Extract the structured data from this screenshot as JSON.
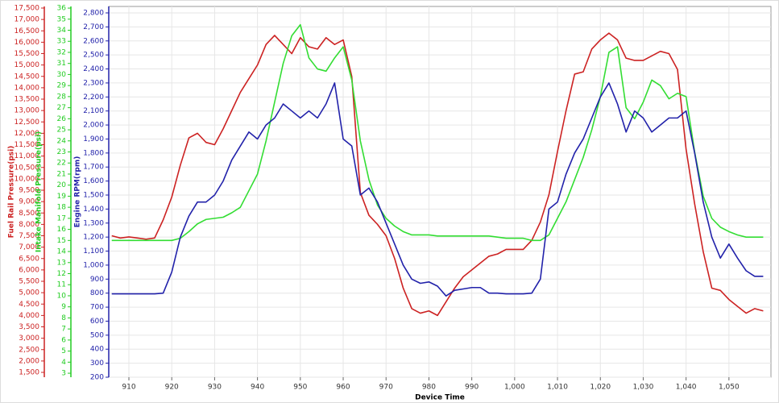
{
  "chart_data": {
    "type": "line",
    "xlabel": "Device Time",
    "xlim": [
      905.3,
      1059.8
    ],
    "xticks": [
      910,
      920,
      930,
      940,
      950,
      960,
      970,
      980,
      990,
      {
        "value": 1000,
        "label": "1,000"
      },
      {
        "value": 1010,
        "label": "1,010"
      },
      {
        "value": 1020,
        "label": "1,020"
      },
      {
        "value": 1030,
        "label": "1,030"
      },
      {
        "value": 1040,
        "label": "1,040"
      },
      {
        "value": 1050,
        "label": "1,050"
      }
    ],
    "grid": true,
    "y_axes": [
      {
        "label": "Fuel Rail Pressure(psi)",
        "color": "#cc2222",
        "ylim": [
          1288,
          17571
        ],
        "yticks": [
          {
            "value": 1500,
            "label": "1,500"
          },
          {
            "value": 2000,
            "label": "2,000"
          },
          {
            "value": 2500,
            "label": "2,500"
          },
          {
            "value": 3000,
            "label": "3,000"
          },
          {
            "value": 3500,
            "label": "3,500"
          },
          {
            "value": 4000,
            "label": "4,000"
          },
          {
            "value": 4500,
            "label": "4,500"
          },
          {
            "value": 5000,
            "label": "5,000"
          },
          {
            "value": 5500,
            "label": "5,500"
          },
          {
            "value": 6000,
            "label": "6,000"
          },
          {
            "value": 6500,
            "label": "6,500"
          },
          {
            "value": 7000,
            "label": "7,000"
          },
          {
            "value": 7500,
            "label": "7,500"
          },
          {
            "value": 8000,
            "label": "8,000"
          },
          {
            "value": 8500,
            "label": "8,500"
          },
          {
            "value": 9000,
            "label": "9,000"
          },
          {
            "value": 9500,
            "label": "9,500"
          },
          {
            "value": 10000,
            "label": "10,000"
          },
          {
            "value": 10500,
            "label": "10,500"
          },
          {
            "value": 11000,
            "label": "11,000"
          },
          {
            "value": 11500,
            "label": "11,500"
          },
          {
            "value": 12000,
            "label": "12,000"
          },
          {
            "value": 12500,
            "label": "12,500"
          },
          {
            "value": 13000,
            "label": "13,000"
          },
          {
            "value": 13500,
            "label": "13,500"
          },
          {
            "value": 14000,
            "label": "14,000"
          },
          {
            "value": 14500,
            "label": "14,500"
          },
          {
            "value": 15000,
            "label": "15,000"
          },
          {
            "value": 15500,
            "label": "15,500"
          },
          {
            "value": 16000,
            "label": "16,000"
          },
          {
            "value": 16500,
            "label": "16,500"
          },
          {
            "value": 17000,
            "label": "17,000"
          },
          {
            "value": 17500,
            "label": "17,500"
          }
        ]
      },
      {
        "label": "Intake Manifold Pressure(psi)",
        "color": "#22cc22",
        "ylim": [
          2.64,
          36.15
        ],
        "yticks": [
          3,
          4,
          5,
          6,
          7,
          8,
          9,
          10,
          11,
          12,
          13,
          14,
          15,
          16,
          17,
          18,
          19,
          20,
          21,
          22,
          23,
          24,
          25,
          26,
          27,
          28,
          29,
          30,
          31,
          32,
          33,
          34,
          35,
          36
        ]
      },
      {
        "label": "Engine RPM(rpm)",
        "color": "#2222aa",
        "ylim": [
          200,
          2846
        ],
        "yticks": [
          200,
          300,
          400,
          500,
          600,
          700,
          800,
          900,
          {
            "value": 1000,
            "label": "1,000"
          },
          {
            "value": 1100,
            "label": "1,100"
          },
          {
            "value": 1200,
            "label": "1,200"
          },
          {
            "value": 1300,
            "label": "1,300"
          },
          {
            "value": 1400,
            "label": "1,400"
          },
          {
            "value": 1500,
            "label": "1,500"
          },
          {
            "value": 1600,
            "label": "1,600"
          },
          {
            "value": 1700,
            "label": "1,700"
          },
          {
            "value": 1800,
            "label": "1,800"
          },
          {
            "value": 1900,
            "label": "1,900"
          },
          {
            "value": 2000,
            "label": "2,000"
          },
          {
            "value": 2100,
            "label": "2,100"
          },
          {
            "value": 2200,
            "label": "2,200"
          },
          {
            "value": 2300,
            "label": "2,300"
          },
          {
            "value": 2400,
            "label": "2,400"
          },
          {
            "value": 2500,
            "label": "2,500"
          },
          {
            "value": 2600,
            "label": "2,600"
          },
          {
            "value": 2700,
            "label": "2,700"
          },
          {
            "value": 2800,
            "label": "2,800"
          }
        ]
      }
    ],
    "x": [
      906,
      908,
      910,
      912,
      914,
      916,
      918,
      920,
      922,
      924,
      926,
      928,
      930,
      932,
      934,
      936,
      938,
      940,
      942,
      944,
      946,
      948,
      950,
      952,
      954,
      956,
      958,
      960,
      962,
      964,
      966,
      968,
      970,
      972,
      974,
      976,
      978,
      980,
      982,
      984,
      986,
      988,
      990,
      992,
      994,
      996,
      998,
      1000,
      1002,
      1004,
      1006,
      1008,
      1010,
      1012,
      1014,
      1016,
      1018,
      1020,
      1022,
      1024,
      1026,
      1028,
      1030,
      1032,
      1034,
      1036,
      1038,
      1040,
      1042,
      1044,
      1046,
      1048,
      1050,
      1052,
      1054,
      1056,
      1058
    ],
    "series": [
      {
        "axis": 0,
        "color": "#cc2222",
        "values": [
          7500,
          7400,
          7450,
          7400,
          7350,
          7400,
          8200,
          9200,
          10600,
          11800,
          12000,
          11600,
          11500,
          12200,
          13000,
          13800,
          14400,
          15000,
          15900,
          16300,
          15900,
          15500,
          16200,
          15800,
          15700,
          16200,
          15900,
          16100,
          14500,
          9400,
          8400,
          8000,
          7500,
          6500,
          5200,
          4300,
          4100,
          4200,
          4000,
          4600,
          5200,
          5700,
          6000,
          6300,
          6600,
          6700,
          6900,
          6900,
          6900,
          7300,
          8100,
          9300,
          11200,
          13000,
          14600,
          14700,
          15700,
          16100,
          16400,
          16100,
          15300,
          15200,
          15200,
          15400,
          15600,
          15500,
          14800,
          11300,
          8900,
          6800,
          5200,
          5100,
          4700,
          4400,
          4100,
          4300,
          4200
        ]
      },
      {
        "axis": 1,
        "color": "#33dd33",
        "values": [
          15,
          15,
          15,
          15,
          15,
          15,
          15,
          15,
          15.2,
          15.8,
          16.5,
          16.9,
          17,
          17.1,
          17.5,
          18,
          19.5,
          21,
          24,
          27.5,
          31,
          33.5,
          34.5,
          31.5,
          30.5,
          30.3,
          31.5,
          32.5,
          29.5,
          24,
          20.5,
          18.2,
          17,
          16.3,
          15.8,
          15.5,
          15.5,
          15.5,
          15.4,
          15.4,
          15.4,
          15.4,
          15.4,
          15.4,
          15.4,
          15.3,
          15.2,
          15.2,
          15.2,
          15,
          15,
          15.5,
          17,
          18.5,
          20.5,
          22.5,
          25,
          28,
          32,
          32.5,
          27,
          26,
          27.5,
          29.5,
          29,
          27.8,
          28.3,
          28,
          23,
          19,
          17,
          16.2,
          15.8,
          15.5,
          15.3,
          15.3,
          15.3
        ]
      },
      {
        "axis": 2,
        "color": "#2222aa",
        "values": [
          795,
          795,
          795,
          795,
          795,
          795,
          800,
          950,
          1200,
          1350,
          1450,
          1450,
          1500,
          1600,
          1750,
          1850,
          1950,
          1900,
          2000,
          2050,
          2150,
          2100,
          2050,
          2100,
          2050,
          2150,
          2300,
          1900,
          1850,
          1500,
          1550,
          1450,
          1300,
          1150,
          1000,
          900,
          870,
          880,
          850,
          780,
          820,
          830,
          840,
          840,
          800,
          800,
          795,
          795,
          795,
          800,
          900,
          1400,
          1450,
          1650,
          1800,
          1900,
          2050,
          2200,
          2300,
          2150,
          1950,
          2100,
          2050,
          1950,
          2000,
          2050,
          2050,
          2100,
          1800,
          1450,
          1200,
          1050,
          1150,
          1050,
          960,
          920,
          920
        ]
      }
    ]
  }
}
